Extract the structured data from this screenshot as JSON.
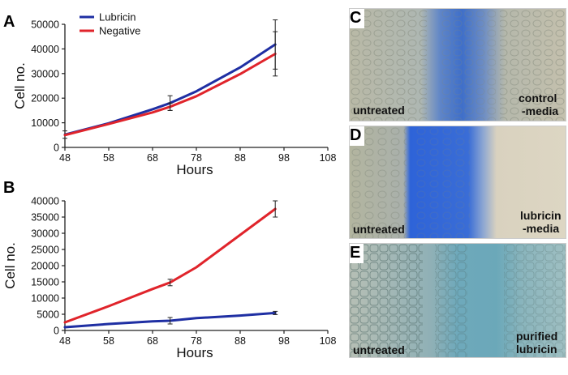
{
  "panels": {
    "A": "A",
    "B": "B"
  },
  "chart_data": [
    {
      "panel": "A",
      "type": "line",
      "xlabel": "Hours",
      "ylabel": "Cell no.",
      "xlim": [
        48,
        108
      ],
      "ylim": [
        0,
        50000
      ],
      "xticks": [
        48,
        58,
        68,
        78,
        88,
        98,
        108
      ],
      "yticks": [
        0,
        10000,
        20000,
        30000,
        40000,
        50000
      ],
      "legend_position": "top-left",
      "series": [
        {
          "name": "Lubricin",
          "color": "#1f2fa3",
          "x": [
            48,
            58,
            68,
            72,
            78,
            88,
            96
          ],
          "y": [
            5200,
            9800,
            15500,
            18000,
            22800,
            32500,
            41800
          ],
          "errors": [
            {
              "x": 48,
              "y": 5200,
              "err": 1500
            },
            {
              "x": 72,
              "y": 18000,
              "err": 3000
            },
            {
              "x": 96,
              "y": 41800,
              "err": 10000
            }
          ]
        },
        {
          "name": "Negative",
          "color": "#e0242b",
          "x": [
            48,
            58,
            68,
            72,
            78,
            88,
            96
          ],
          "y": [
            5000,
            9500,
            14200,
            16500,
            20800,
            29800,
            38000
          ],
          "errors": [
            {
              "x": 72,
              "y": 16500,
              "err": 1500
            },
            {
              "x": 96,
              "y": 38000,
              "err": 9000
            }
          ]
        }
      ]
    },
    {
      "panel": "B",
      "type": "line",
      "xlabel": "Hours",
      "ylabel": "Cell no.",
      "xlim": [
        48,
        108
      ],
      "ylim": [
        0,
        40000
      ],
      "xticks": [
        48,
        58,
        68,
        78,
        88,
        98,
        108
      ],
      "yticks": [
        0,
        5000,
        10000,
        15000,
        20000,
        25000,
        30000,
        35000,
        40000
      ],
      "series": [
        {
          "name": "Negative",
          "color": "#e0242b",
          "x": [
            48,
            58,
            68,
            72,
            78,
            88,
            96
          ],
          "y": [
            2500,
            7500,
            12800,
            14800,
            19500,
            29500,
            37500
          ],
          "errors": [
            {
              "x": 72,
              "y": 14800,
              "err": 1000
            },
            {
              "x": 96,
              "y": 37500,
              "err": 2500
            }
          ]
        },
        {
          "name": "Lubricin",
          "color": "#1f2fa3",
          "x": [
            48,
            58,
            68,
            72,
            78,
            88,
            96
          ],
          "y": [
            1000,
            2000,
            2800,
            3000,
            3800,
            4600,
            5400
          ],
          "errors": [
            {
              "x": 72,
              "y": 3000,
              "err": 1000
            },
            {
              "x": 96,
              "y": 5400,
              "err": 500
            }
          ]
        }
      ]
    }
  ],
  "images": [
    {
      "letter": "C",
      "left_label": "untreated",
      "right_label_1": "control",
      "right_label_2": "-media"
    },
    {
      "letter": "D",
      "left_label": "untreated",
      "right_label_1": "lubricin",
      "right_label_2": "-media"
    },
    {
      "letter": "E",
      "left_label": "untreated",
      "right_label_1": "purified",
      "right_label_2": "lubricin"
    }
  ]
}
